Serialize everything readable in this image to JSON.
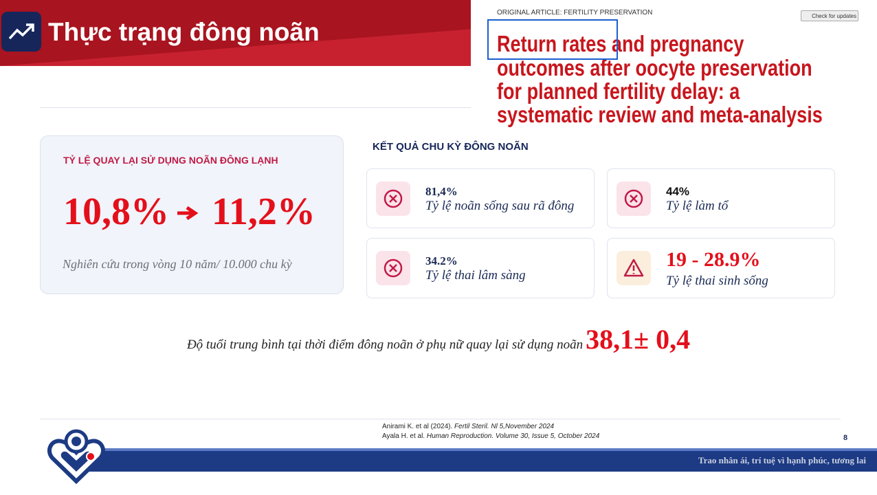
{
  "header": {
    "title": "Thực trạng đông noãn"
  },
  "article": {
    "label": "ORIGINAL ARTICLE: FERTILITY PRESERVATION",
    "badge": "Check for updates",
    "title_highlight": "Return rates",
    "title_lines": [
      "and pregnancy",
      "outcomes after oocyte preservation",
      "for planned fertility delay: a",
      "systematic review and meta-analysis"
    ]
  },
  "left_card": {
    "heading": "TỶ LỆ QUAY LẠI SỬ DỤNG NOÃN ĐÔNG LẠNH",
    "from": "10,8%",
    "to": "11,2%",
    "note": "Nghiên cứu trong vòng 10 năm/ 10.000 chu kỳ"
  },
  "results": {
    "heading": "KẾT QUẢ CHU KỲ ĐÔNG NOÃN",
    "items": [
      {
        "value": "81,4%",
        "label": "Tỷ lệ noãn sống sau rã đông"
      },
      {
        "value": "44%",
        "label": "Tỷ lệ làm tổ"
      },
      {
        "value": "34.2%",
        "label": "Tỷ lệ thai lâm sàng"
      },
      {
        "value": "19 - 28.9%",
        "label": "Tỷ lệ thai sinh sống"
      }
    ]
  },
  "age": {
    "text": "Độ tuổi trung bình tại thời điểm đông noãn ở phụ nữ quay lại sử dụng noãn",
    "value": "38,1± 0,4"
  },
  "references": [
    {
      "authors": "Anirami K. et al (2024).",
      "source": "Fertil Steril. Nl 5,November 2024"
    },
    {
      "authors": "Ayala H. et al.",
      "source": "Human Reproduction. Volume 30, Issue 5, October 2024"
    }
  ],
  "page_number": "8",
  "footer": {
    "slogan": "Trao nhân ái, trí tuệ vì hạnh phúc, tương lai"
  }
}
